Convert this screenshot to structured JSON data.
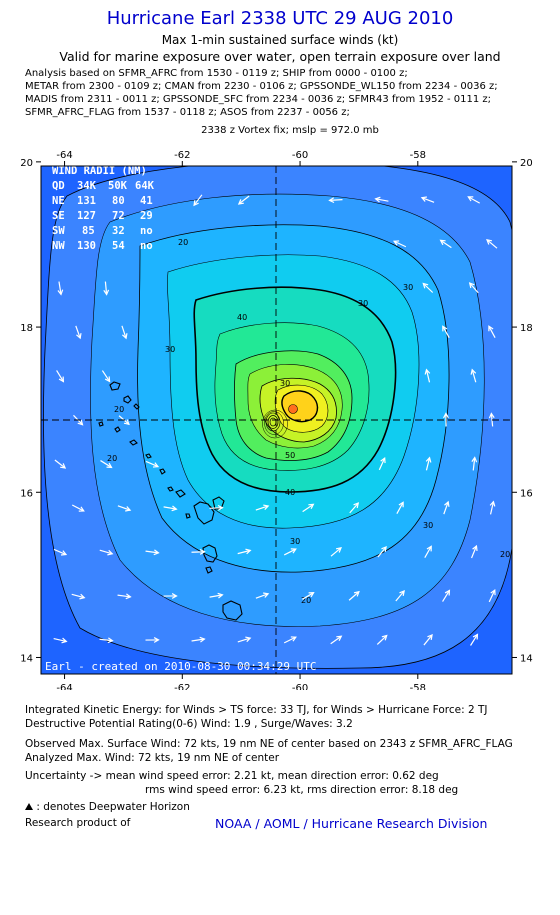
{
  "header": {
    "title": "Hurricane Earl 2338 UTC 29 AUG 2010",
    "subtitle": "Max 1-min sustained surface winds (kt)",
    "validity": "Valid for marine exposure over water, open terrain exposure over land",
    "analysis_lines": [
      "Analysis based on SFMR_AFRC from 1530 - 0119 z; SHIP from 0000 - 0100 z;",
      "METAR from 2300 - 0109 z; CMAN from 2230 - 0106 z; GPSSONDE_WL150 from 2234 - 0036 z;",
      "MADIS from 2311 - 0011 z; GPSSONDE_SFC from 2234 - 0036 z; SFMR43 from 1952 - 0111 z;",
      "SFMR_AFRC_FLAG from 1537 - 0118 z; ASOS from 2237 - 0056 z;"
    ],
    "vortex_fix": "2338 z Vortex fix; mslp = 972.0 mb"
  },
  "map": {
    "lon_ticks": [
      -64,
      -62,
      -60,
      -58
    ],
    "lon_labels": [
      "-64",
      "-62",
      "-60",
      "-58"
    ],
    "lat_ticks": [
      20,
      18,
      16,
      14
    ],
    "lat_labels": [
      "20",
      "18",
      "16",
      "14"
    ],
    "lon_range": [
      -64.4,
      -56.4
    ],
    "lat_range": [
      13.8,
      19.95
    ],
    "center": {
      "lon": -60.35,
      "lat": 17.75
    },
    "contour_levels_kt": [
      20,
      30,
      40,
      50
    ],
    "contour_labels": [
      "20",
      "20",
      "20",
      "30",
      "30",
      "30",
      "30",
      "40",
      "40",
      "50",
      "30",
      "20",
      "20",
      "30"
    ],
    "credit": "Earl - created on 2010-08-30 00:34:29 UTC",
    "colors": {
      "lt20": "#1e64ff",
      "k20": "#3b84ff",
      "k25": "#2e9cff",
      "k30": "#1eb4ff",
      "k35": "#10ccf0",
      "k40": "#16dcc0",
      "k45": "#22e896",
      "k50": "#52ee5e",
      "k55": "#8cf038",
      "k60": "#c6f226",
      "k65": "#f0f020",
      "k70": "#ffd21a",
      "wind_max": "#ff6e1e"
    }
  },
  "wind_radii": {
    "title": "WIND RADII (NM)",
    "header": [
      "QD",
      "34K",
      "50K",
      "64K"
    ],
    "rows": [
      [
        "NE",
        "131",
        "80",
        "41"
      ],
      [
        "SE",
        "127",
        "72",
        "29"
      ],
      [
        "SW",
        "85",
        "32",
        "no"
      ],
      [
        "NW",
        "130",
        "54",
        "no"
      ]
    ]
  },
  "footer": {
    "ike": "Integrated Kinetic Energy:  for Winds > TS force: 33 TJ,  for Winds > Hurricane Force: 2 TJ",
    "dpr": "Destructive Potential Rating(0-6)   Wind: 1.9 , Surge/Waves: 3.2",
    "obs_max": "Observed Max. Surface Wind: 72 kts, 19 nm NE of center based on 2343 z SFMR_AFRC_FLAG",
    "analyzed_max": "Analyzed Max. Wind: 72 kts, 19 nm NE of center",
    "uncertainty1": "Uncertainty -> mean wind speed error: 2.21 kt,   mean direction error: 0.62 deg",
    "uncertainty2": "rms wind speed error: 6.23 kt,   rms direction error: 8.18 deg",
    "deepwater": ": denotes Deepwater Horizon",
    "research": "Research product of",
    "noaa": "NOAA / AOML / Hurricane Research Division"
  }
}
